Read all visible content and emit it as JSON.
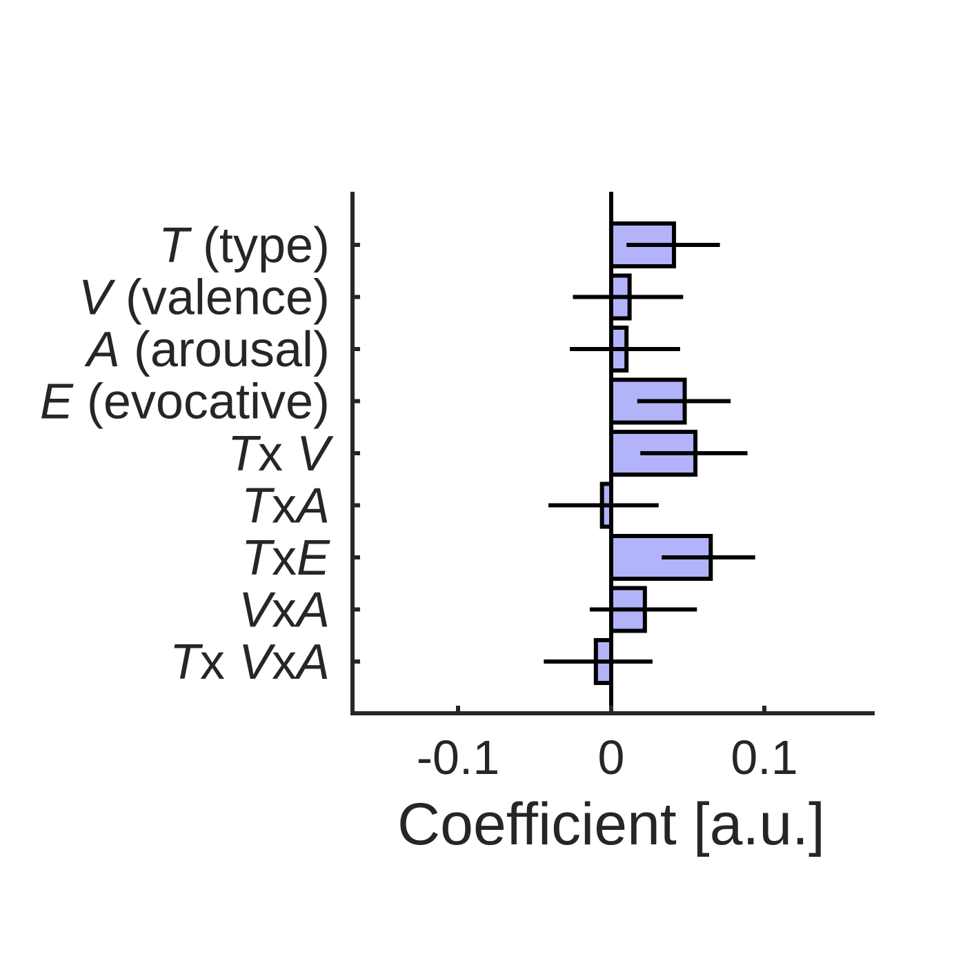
{
  "chart_data": {
    "type": "bar",
    "orientation": "horizontal",
    "xlabel": "Coefficient [a.u.]",
    "ylabel": "",
    "xlim": [
      -0.17,
      0.17
    ],
    "xticks": [
      -0.1,
      0,
      0.1
    ],
    "xtick_labels": [
      "-0.1",
      "0",
      "0.1"
    ],
    "grid": false,
    "categories": [
      {
        "label": [
          {
            "text": "T",
            "italic": true
          },
          {
            "text": " (type)",
            "italic": false
          }
        ]
      },
      {
        "label": [
          {
            "text": "V",
            "italic": true
          },
          {
            "text": " (valence)",
            "italic": false
          }
        ]
      },
      {
        "label": [
          {
            "text": "A",
            "italic": true
          },
          {
            "text": " (arousal)",
            "italic": false
          }
        ]
      },
      {
        "label": [
          {
            "text": "E",
            "italic": true
          },
          {
            "text": " (evocative)",
            "italic": false
          }
        ]
      },
      {
        "label": [
          {
            "text": "T",
            "italic": true
          },
          {
            "text": "x ",
            "italic": false
          },
          {
            "text": "V",
            "italic": true
          }
        ]
      },
      {
        "label": [
          {
            "text": "T",
            "italic": true
          },
          {
            "text": "x",
            "italic": false
          },
          {
            "text": "A",
            "italic": true
          }
        ]
      },
      {
        "label": [
          {
            "text": "T",
            "italic": true
          },
          {
            "text": "x",
            "italic": false
          },
          {
            "text": "E",
            "italic": true
          }
        ]
      },
      {
        "label": [
          {
            "text": "V",
            "italic": true
          },
          {
            "text": "x",
            "italic": false
          },
          {
            "text": "A",
            "italic": true
          }
        ]
      },
      {
        "label": [
          {
            "text": "T",
            "italic": true
          },
          {
            "text": "x ",
            "italic": false
          },
          {
            "text": "V",
            "italic": true
          },
          {
            "text": "x",
            "italic": false
          },
          {
            "text": "A",
            "italic": true
          }
        ]
      }
    ],
    "values": [
      0.041,
      0.012,
      0.01,
      0.048,
      0.055,
      -0.006,
      0.065,
      0.022,
      -0.01
    ],
    "error_low": [
      0.01,
      -0.025,
      -0.027,
      0.017,
      0.019,
      -0.041,
      0.033,
      -0.014,
      -0.044
    ],
    "error_high": [
      0.071,
      0.047,
      0.045,
      0.078,
      0.089,
      0.031,
      0.094,
      0.056,
      0.027
    ],
    "colors": {
      "bar_fill": "#b3b3fa",
      "bar_edge": "#000000",
      "axis": "#262626",
      "errorbar": "#000000"
    }
  }
}
